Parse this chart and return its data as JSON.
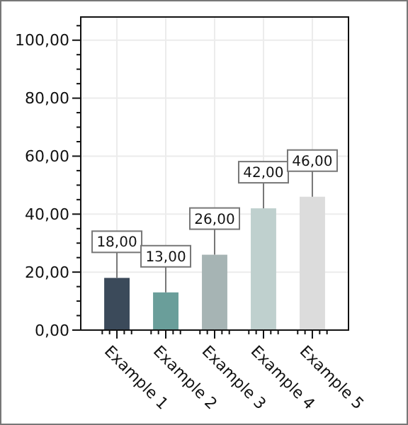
{
  "chart_data": {
    "type": "bar",
    "categories": [
      "Example 1",
      "Example 2",
      "Example 3",
      "Example 4",
      "Example 5"
    ],
    "values": [
      18,
      13,
      26,
      42,
      46
    ],
    "colors": [
      "#3b4a5a",
      "#6a9e9a",
      "#a6b4b4",
      "#bfd0ce",
      "#dcdcdc"
    ],
    "value_labels": [
      "18,00",
      "13,00",
      "26,00",
      "42,00",
      "46,00"
    ],
    "ylim": [
      0,
      108
    ],
    "yticks": [
      {
        "value": 0,
        "label": "0,00"
      },
      {
        "value": 5,
        "label": null
      },
      {
        "value": 10,
        "label": null
      },
      {
        "value": 15,
        "label": null
      },
      {
        "value": 20,
        "label": "20,00"
      },
      {
        "value": 25,
        "label": null
      },
      {
        "value": 30,
        "label": null
      },
      {
        "value": 35,
        "label": null
      },
      {
        "value": 40,
        "label": "40,00"
      },
      {
        "value": 45,
        "label": null
      },
      {
        "value": 50,
        "label": null
      },
      {
        "value": 55,
        "label": null
      },
      {
        "value": 60,
        "label": "60,00"
      },
      {
        "value": 65,
        "label": null
      },
      {
        "value": 70,
        "label": null
      },
      {
        "value": 75,
        "label": null
      },
      {
        "value": 80,
        "label": "80,00"
      },
      {
        "value": 85,
        "label": null
      },
      {
        "value": 90,
        "label": null
      },
      {
        "value": 95,
        "label": null
      },
      {
        "value": 100,
        "label": "100,00"
      },
      {
        "value": 105,
        "label": null
      }
    ],
    "grid": true
  }
}
